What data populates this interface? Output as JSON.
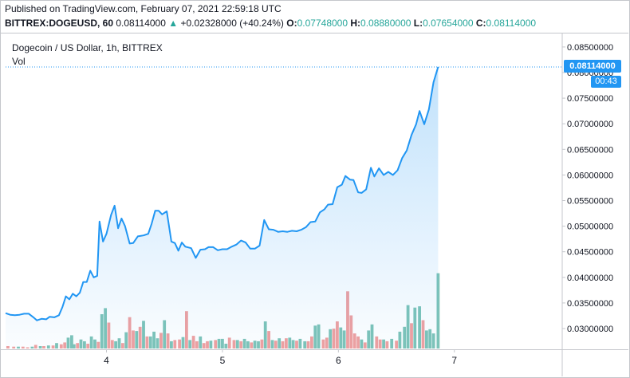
{
  "header": {
    "published": "Published on TradingView.com, February 07, 2021 22:59:18 UTC",
    "symbol": "BITTREX:DOGEUSD, 60",
    "last": "0.08114000",
    "change_arrow": "▲",
    "change": "+0.02328000 (+40.24%)",
    "o_label": "O:",
    "o_value": "0.07748000",
    "h_label": "H:",
    "h_value": "0.08880000",
    "l_label": "L:",
    "l_value": "0.07654000",
    "c_label": "C:",
    "c_value": "0.08114000"
  },
  "legend": {
    "title": "Dogecoin / US Dollar, 1h, BITTREX",
    "volume_label": "Vol"
  },
  "price_tag": "0.08114000",
  "time_tag": "00:43",
  "colors": {
    "line": "#2196f3",
    "vol_up": "#7ec4b8",
    "vol_down": "#f0a0a0",
    "tag": "#2196f3"
  },
  "chart_data": {
    "type": "area",
    "x_tick_labels": [
      "4",
      "5",
      "6",
      "7"
    ],
    "x_tick_positions": [
      4,
      5,
      6,
      7
    ],
    "y_tick_labels": [
      "0.03000000",
      "0.03500000",
      "0.04000000",
      "0.04500000",
      "0.05000000",
      "0.05500000",
      "0.06000000",
      "0.06500000",
      "0.07000000",
      "0.07500000",
      "0.08000000",
      "0.08500000"
    ],
    "ylim": [
      0.026,
      0.0875
    ],
    "xlim": [
      3.13,
      7.93
    ],
    "series": [
      {
        "values": [
          [
            3.13,
            0.033
          ],
          [
            3.17,
            0.0327
          ],
          [
            3.21,
            0.0326
          ],
          [
            3.25,
            0.0327
          ],
          [
            3.29,
            0.0329
          ],
          [
            3.33,
            0.0329
          ],
          [
            3.37,
            0.0322
          ],
          [
            3.4,
            0.0316
          ],
          [
            3.44,
            0.0319
          ],
          [
            3.48,
            0.0318
          ],
          [
            3.51,
            0.0323
          ],
          [
            3.55,
            0.0322
          ],
          [
            3.59,
            0.0326
          ],
          [
            3.62,
            0.0342
          ],
          [
            3.65,
            0.0363
          ],
          [
            3.68,
            0.0357
          ],
          [
            3.71,
            0.0368
          ],
          [
            3.74,
            0.0363
          ],
          [
            3.77,
            0.037
          ],
          [
            3.8,
            0.0391
          ],
          [
            3.83,
            0.0391
          ],
          [
            3.86,
            0.0413
          ],
          [
            3.89,
            0.04
          ],
          [
            3.92,
            0.0403
          ],
          [
            3.94,
            0.0509
          ],
          [
            3.97,
            0.047
          ],
          [
            4.0,
            0.0485
          ],
          [
            4.04,
            0.0522
          ],
          [
            4.07,
            0.054
          ],
          [
            4.1,
            0.0496
          ],
          [
            4.13,
            0.0515
          ],
          [
            4.16,
            0.05
          ],
          [
            4.2,
            0.0466
          ],
          [
            4.23,
            0.0467
          ],
          [
            4.27,
            0.048
          ],
          [
            4.32,
            0.0482
          ],
          [
            4.36,
            0.0485
          ],
          [
            4.39,
            0.0505
          ],
          [
            4.42,
            0.053
          ],
          [
            4.45,
            0.053
          ],
          [
            4.48,
            0.0523
          ],
          [
            4.52,
            0.0529
          ],
          [
            4.56,
            0.047
          ],
          [
            4.59,
            0.0467
          ],
          [
            4.62,
            0.0452
          ],
          [
            4.65,
            0.0468
          ],
          [
            4.68,
            0.046
          ],
          [
            4.73,
            0.0457
          ],
          [
            4.77,
            0.0438
          ],
          [
            4.81,
            0.0454
          ],
          [
            4.85,
            0.0455
          ],
          [
            4.88,
            0.0459
          ],
          [
            4.92,
            0.0459
          ],
          [
            4.96,
            0.0453
          ],
          [
            5.0,
            0.0455
          ],
          [
            5.04,
            0.0455
          ],
          [
            5.08,
            0.046
          ],
          [
            5.12,
            0.0464
          ],
          [
            5.16,
            0.0472
          ],
          [
            5.2,
            0.0468
          ],
          [
            5.24,
            0.0456
          ],
          [
            5.28,
            0.0456
          ],
          [
            5.32,
            0.0462
          ],
          [
            5.36,
            0.0512
          ],
          [
            5.4,
            0.0494
          ],
          [
            5.44,
            0.0493
          ],
          [
            5.48,
            0.0489
          ],
          [
            5.52,
            0.049
          ],
          [
            5.56,
            0.0489
          ],
          [
            5.6,
            0.0491
          ],
          [
            5.64,
            0.049
          ],
          [
            5.68,
            0.0493
          ],
          [
            5.72,
            0.0498
          ],
          [
            5.76,
            0.0508
          ],
          [
            5.8,
            0.0509
          ],
          [
            5.84,
            0.0527
          ],
          [
            5.88,
            0.0533
          ],
          [
            5.91,
            0.0542
          ],
          [
            5.95,
            0.0543
          ],
          [
            5.99,
            0.0576
          ],
          [
            6.03,
            0.0581
          ],
          [
            6.06,
            0.0598
          ],
          [
            6.1,
            0.0591
          ],
          [
            6.13,
            0.059
          ],
          [
            6.17,
            0.0566
          ],
          [
            6.2,
            0.0565
          ],
          [
            6.24,
            0.0572
          ],
          [
            6.28,
            0.0614
          ],
          [
            6.31,
            0.0597
          ],
          [
            6.35,
            0.0613
          ],
          [
            6.39,
            0.06
          ],
          [
            6.43,
            0.0606
          ],
          [
            6.47,
            0.06
          ],
          [
            6.51,
            0.0609
          ],
          [
            6.55,
            0.0633
          ],
          [
            6.59,
            0.0648
          ],
          [
            6.63,
            0.0678
          ],
          [
            6.67,
            0.0699
          ],
          [
            6.7,
            0.0725
          ],
          [
            6.74,
            0.0699
          ],
          [
            6.78,
            0.0728
          ],
          [
            6.82,
            0.0781
          ],
          [
            6.86,
            0.0811
          ]
        ]
      }
    ],
    "volume": [
      [
        3.15,
        4,
        "d"
      ],
      [
        3.2,
        3,
        "d"
      ],
      [
        3.24,
        3,
        "u"
      ],
      [
        3.28,
        3,
        "d"
      ],
      [
        3.32,
        2,
        "d"
      ],
      [
        3.36,
        3,
        "u"
      ],
      [
        3.39,
        6,
        "d"
      ],
      [
        3.43,
        4,
        "u"
      ],
      [
        3.46,
        4,
        "d"
      ],
      [
        3.5,
        5,
        "u"
      ],
      [
        3.54,
        5,
        "d"
      ],
      [
        3.57,
        9,
        "u"
      ],
      [
        3.61,
        7,
        "d"
      ],
      [
        3.64,
        10,
        "d"
      ],
      [
        3.67,
        18,
        "u"
      ],
      [
        3.7,
        22,
        "u"
      ],
      [
        3.72,
        7,
        "u"
      ],
      [
        3.75,
        9,
        "d"
      ],
      [
        3.78,
        15,
        "u"
      ],
      [
        3.81,
        12,
        "u"
      ],
      [
        3.84,
        8,
        "d"
      ],
      [
        3.87,
        20,
        "u"
      ],
      [
        3.9,
        15,
        "u"
      ],
      [
        3.93,
        11,
        "d"
      ],
      [
        3.96,
        57,
        "u"
      ],
      [
        3.99,
        67,
        "u"
      ],
      [
        4.02,
        43,
        "d"
      ],
      [
        4.05,
        14,
        "d"
      ],
      [
        4.08,
        12,
        "u"
      ],
      [
        4.11,
        17,
        "u"
      ],
      [
        4.14,
        9,
        "d"
      ],
      [
        4.17,
        27,
        "u"
      ],
      [
        4.2,
        52,
        "d"
      ],
      [
        4.23,
        30,
        "d"
      ],
      [
        4.26,
        29,
        "u"
      ],
      [
        4.29,
        36,
        "d"
      ],
      [
        4.32,
        46,
        "u"
      ],
      [
        4.35,
        20,
        "d"
      ],
      [
        4.38,
        20,
        "u"
      ],
      [
        4.41,
        28,
        "u"
      ],
      [
        4.44,
        17,
        "u"
      ],
      [
        4.47,
        26,
        "d"
      ],
      [
        4.5,
        47,
        "u"
      ],
      [
        4.53,
        25,
        "d"
      ],
      [
        4.56,
        12,
        "u"
      ],
      [
        4.59,
        14,
        "d"
      ],
      [
        4.63,
        15,
        "d"
      ],
      [
        4.66,
        19,
        "u"
      ],
      [
        4.69,
        62,
        "d"
      ],
      [
        4.72,
        14,
        "u"
      ],
      [
        4.75,
        21,
        "d"
      ],
      [
        4.78,
        12,
        "d"
      ],
      [
        4.81,
        20,
        "u"
      ],
      [
        4.84,
        9,
        "d"
      ],
      [
        4.87,
        12,
        "d"
      ],
      [
        4.9,
        13,
        "u"
      ],
      [
        4.94,
        14,
        "d"
      ],
      [
        4.97,
        16,
        "u"
      ],
      [
        5.0,
        16,
        "u"
      ],
      [
        5.03,
        8,
        "u"
      ],
      [
        5.06,
        18,
        "d"
      ],
      [
        5.1,
        14,
        "d"
      ],
      [
        5.13,
        14,
        "u"
      ],
      [
        5.16,
        12,
        "d"
      ],
      [
        5.19,
        16,
        "u"
      ],
      [
        5.22,
        12,
        "u"
      ],
      [
        5.25,
        10,
        "d"
      ],
      [
        5.28,
        13,
        "u"
      ],
      [
        5.31,
        12,
        "u"
      ],
      [
        5.34,
        15,
        "d"
      ],
      [
        5.37,
        45,
        "u"
      ],
      [
        5.4,
        29,
        "d"
      ],
      [
        5.43,
        14,
        "u"
      ],
      [
        5.46,
        13,
        "d"
      ],
      [
        5.49,
        17,
        "u"
      ],
      [
        5.52,
        12,
        "d"
      ],
      [
        5.55,
        17,
        "d"
      ],
      [
        5.58,
        18,
        "u"
      ],
      [
        5.61,
        14,
        "u"
      ],
      [
        5.64,
        13,
        "d"
      ],
      [
        5.67,
        16,
        "u"
      ],
      [
        5.71,
        12,
        "u"
      ],
      [
        5.74,
        12,
        "d"
      ],
      [
        5.77,
        20,
        "d"
      ],
      [
        5.8,
        38,
        "u"
      ],
      [
        5.83,
        40,
        "u"
      ],
      [
        5.87,
        15,
        "d"
      ],
      [
        5.9,
        18,
        "d"
      ],
      [
        5.93,
        32,
        "u"
      ],
      [
        5.96,
        33,
        "d"
      ],
      [
        5.99,
        45,
        "d"
      ],
      [
        6.02,
        35,
        "u"
      ],
      [
        6.05,
        30,
        "u"
      ],
      [
        6.08,
        95,
        "d"
      ],
      [
        6.11,
        55,
        "d"
      ],
      [
        6.14,
        25,
        "d"
      ],
      [
        6.17,
        20,
        "d"
      ],
      [
        6.2,
        15,
        "u"
      ],
      [
        6.23,
        10,
        "d"
      ],
      [
        6.26,
        30,
        "u"
      ],
      [
        6.29,
        40,
        "u"
      ],
      [
        6.33,
        20,
        "d"
      ],
      [
        6.36,
        15,
        "d"
      ],
      [
        6.39,
        15,
        "u"
      ],
      [
        6.42,
        12,
        "d"
      ],
      [
        6.46,
        16,
        "u"
      ],
      [
        6.5,
        13,
        "d"
      ],
      [
        6.53,
        28,
        "u"
      ],
      [
        6.57,
        36,
        "u"
      ],
      [
        6.6,
        72,
        "u"
      ],
      [
        6.63,
        42,
        "d"
      ],
      [
        6.66,
        68,
        "u"
      ],
      [
        6.7,
        70,
        "u"
      ],
      [
        6.73,
        47,
        "d"
      ],
      [
        6.76,
        30,
        "u"
      ],
      [
        6.79,
        32,
        "u"
      ],
      [
        6.82,
        25,
        "u"
      ],
      [
        6.86,
        125,
        "u"
      ]
    ]
  }
}
